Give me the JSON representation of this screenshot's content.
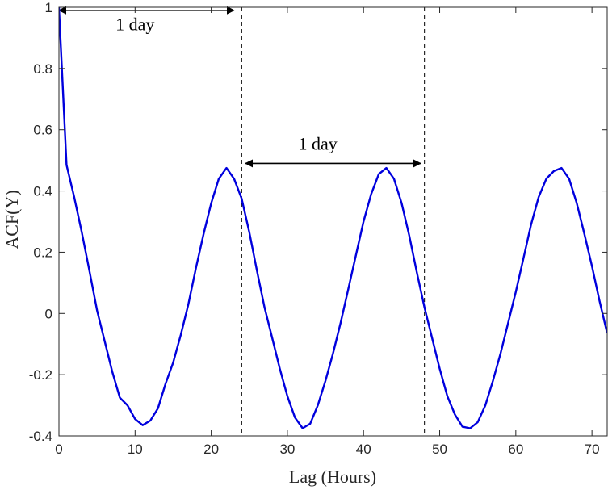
{
  "chart_data": {
    "type": "line",
    "title": "",
    "xlabel": "Lag (Hours)",
    "ylabel": "ACF(Y)",
    "xlim": [
      0,
      72
    ],
    "ylim": [
      -0.4,
      1
    ],
    "x_ticks": [
      0,
      10,
      20,
      30,
      40,
      50,
      60,
      70
    ],
    "y_ticks": [
      -0.4,
      -0.2,
      0,
      0.2,
      0.4,
      0.6,
      0.8,
      1
    ],
    "x_tick_labels": [
      "0",
      "10",
      "20",
      "30",
      "40",
      "50",
      "60",
      "70"
    ],
    "y_tick_labels": [
      "-0.4",
      "-0.2",
      "0",
      "0.2",
      "0.4",
      "0.6",
      "0.8",
      "1"
    ],
    "grid": false,
    "line_color": "#0000dd",
    "series": [
      {
        "x": [
          0,
          1,
          2,
          3,
          4,
          5,
          6,
          7,
          8,
          9,
          10,
          11,
          12,
          13,
          14,
          15,
          16,
          17,
          18,
          19,
          20,
          21,
          22,
          23,
          24,
          25,
          26,
          27,
          28,
          29,
          30,
          31,
          32,
          33,
          34,
          35,
          36,
          37,
          38,
          39,
          40,
          41,
          42,
          43,
          44,
          45,
          46,
          47,
          48,
          49,
          50,
          51,
          52,
          53,
          54,
          55,
          56,
          57,
          58,
          59,
          60,
          61,
          62,
          63,
          64,
          65,
          66,
          67,
          68,
          69,
          70,
          71,
          72
        ],
        "values": [
          1,
          0.485,
          0.38,
          0.265,
          0.14,
          0.01,
          -0.09,
          -0.19,
          -0.275,
          -0.3,
          -0.345,
          -0.365,
          -0.35,
          -0.31,
          -0.23,
          -0.16,
          -0.07,
          0.03,
          0.15,
          0.26,
          0.36,
          0.44,
          0.475,
          0.44,
          0.375,
          0.265,
          0.14,
          0.02,
          -0.08,
          -0.18,
          -0.27,
          -0.34,
          -0.375,
          -0.36,
          -0.3,
          -0.22,
          -0.13,
          -0.03,
          0.08,
          0.19,
          0.3,
          0.39,
          0.455,
          0.475,
          0.44,
          0.36,
          0.255,
          0.135,
          0.02,
          -0.08,
          -0.18,
          -0.27,
          -0.33,
          -0.37,
          -0.375,
          -0.355,
          -0.3,
          -0.22,
          -0.13,
          -0.03,
          0.07,
          0.18,
          0.29,
          0.38,
          0.44,
          0.465,
          0.475,
          0.44,
          0.36,
          0.26,
          0.155,
          0.04,
          -0.065
        ]
      }
    ],
    "reference_lines": [
      {
        "x": 24
      },
      {
        "x": 48
      }
    ],
    "annotations": [
      {
        "text": "1 day",
        "x_from": 0,
        "x_to": 23,
        "y": 0.99,
        "label_x": 10,
        "label_y": 0.925
      },
      {
        "text": "1 day",
        "x_from": 24.5,
        "x_to": 47.5,
        "y": 0.49,
        "label_x": 34,
        "label_y": 0.535
      }
    ]
  }
}
